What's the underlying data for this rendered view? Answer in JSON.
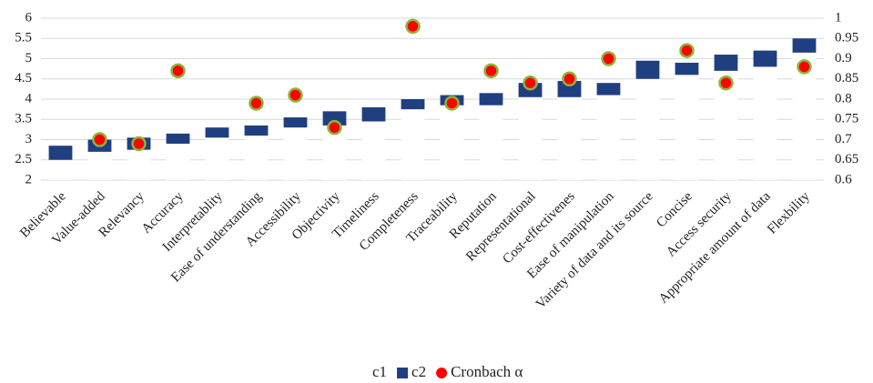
{
  "chart_data": {
    "type": "bar",
    "categories": [
      "Believable",
      "Value-added",
      "Relevancy",
      "Accuracy",
      "Interpretablity",
      "Ease of understanding",
      "Accessibility",
      "Objectivity",
      "Timeliness",
      "Completeness",
      "Traceability",
      "Reputation",
      "Representational",
      "Cost-effectivenes",
      "Ease of manipulation",
      "Variety of data and its source",
      "Concise",
      "Access security",
      "Appropriate amount of data",
      "Flexbility"
    ],
    "series": [
      {
        "name": "c1",
        "color": "#ffffff",
        "values": [
          2.5,
          2.7,
          2.75,
          2.9,
          3.05,
          3.1,
          3.3,
          3.35,
          3.45,
          3.75,
          3.85,
          3.85,
          4.05,
          4.05,
          4.1,
          4.5,
          4.6,
          4.7,
          4.8,
          5.15
        ]
      },
      {
        "name": "c2",
        "color": "#1f3f80",
        "values": [
          0.35,
          0.3,
          0.3,
          0.25,
          0.25,
          0.25,
          0.25,
          0.35,
          0.35,
          0.25,
          0.25,
          0.3,
          0.35,
          0.4,
          0.3,
          0.45,
          0.3,
          0.4,
          0.4,
          0.35
        ]
      },
      {
        "name": "Cronbach α",
        "type": "scatter",
        "axis": "y2",
        "color": "#ff0000",
        "values": [
          null,
          0.7,
          0.69,
          0.87,
          null,
          0.79,
          0.81,
          0.73,
          null,
          0.98,
          0.79,
          0.87,
          0.84,
          0.85,
          0.9,
          null,
          0.92,
          0.84,
          null,
          0.88
        ]
      }
    ],
    "ylim": [
      2,
      6
    ],
    "yticks": [
      2,
      2.5,
      3,
      3.5,
      4,
      4.5,
      5,
      5.5,
      6
    ],
    "y2lim": [
      0.6,
      1
    ],
    "y2ticks": [
      0.6,
      0.65,
      0.7,
      0.75,
      0.8,
      0.85,
      0.9,
      0.95,
      1
    ],
    "grid": true,
    "stacked": true,
    "legend": "bottom"
  }
}
